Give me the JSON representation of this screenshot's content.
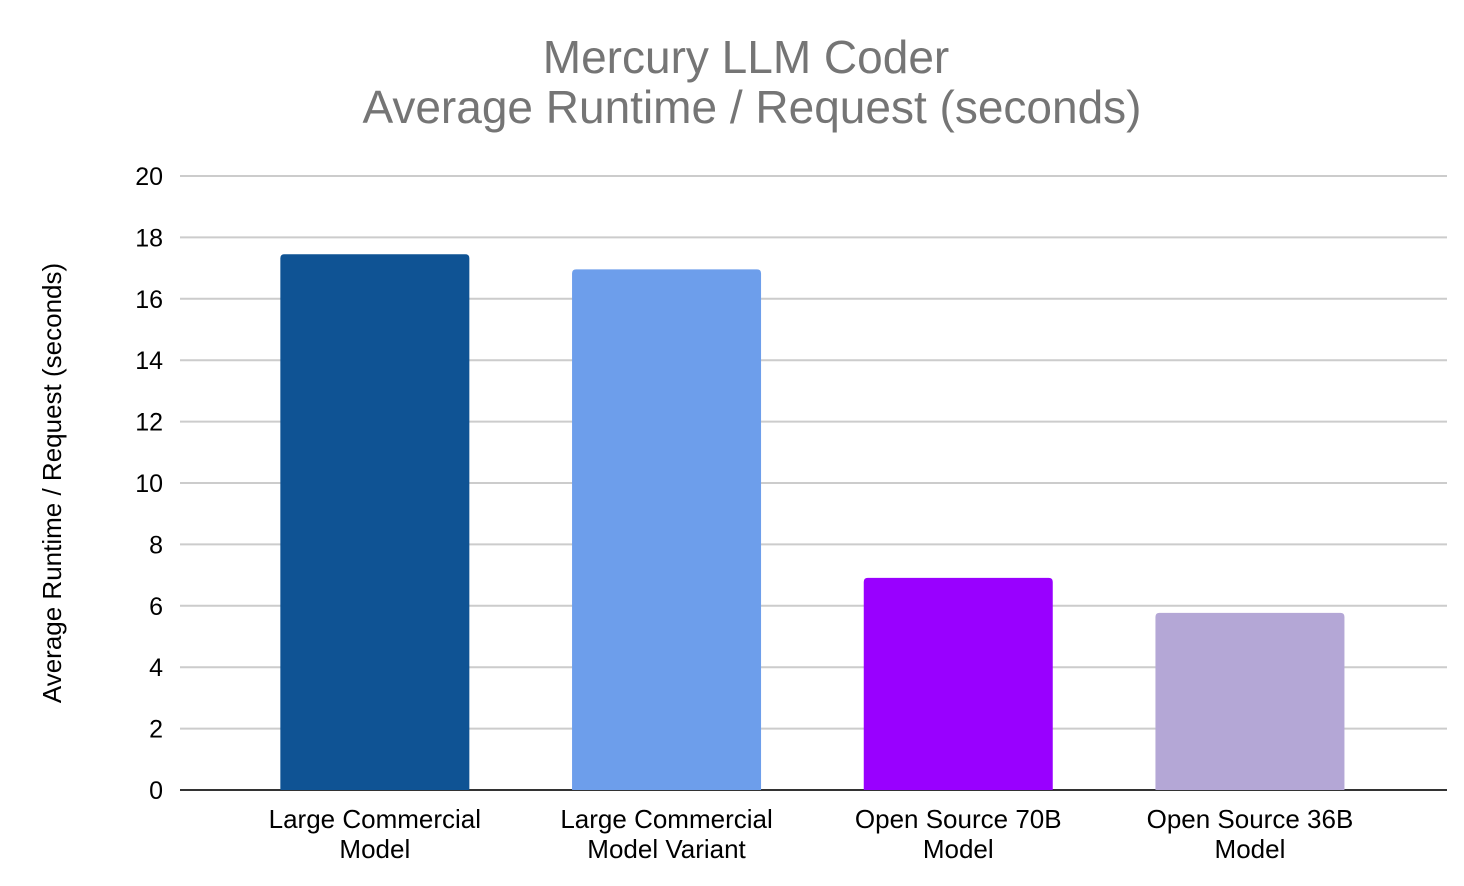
{
  "chart_data": {
    "type": "bar",
    "title": [
      "Mercury LLM Coder",
      "Average Runtime / Request (seconds)"
    ],
    "xlabel": "",
    "ylabel": "Average Runtime / Request (seconds)",
    "ylim": [
      0,
      20
    ],
    "yticks": [
      0,
      2,
      4,
      6,
      8,
      10,
      12,
      14,
      16,
      18,
      20
    ],
    "grid": true,
    "categories": [
      [
        "Large Commercial",
        "Model"
      ],
      [
        "Large Commercial",
        "Model Variant"
      ],
      [
        "Open Source 70B",
        "Model"
      ],
      [
        "Open Source 36B",
        "Model"
      ]
    ],
    "values": [
      17.45,
      16.96,
      6.91,
      5.77
    ],
    "colors": [
      "#0f5394",
      "#6d9eeb",
      "#9900ff",
      "#b4a7d6"
    ]
  }
}
